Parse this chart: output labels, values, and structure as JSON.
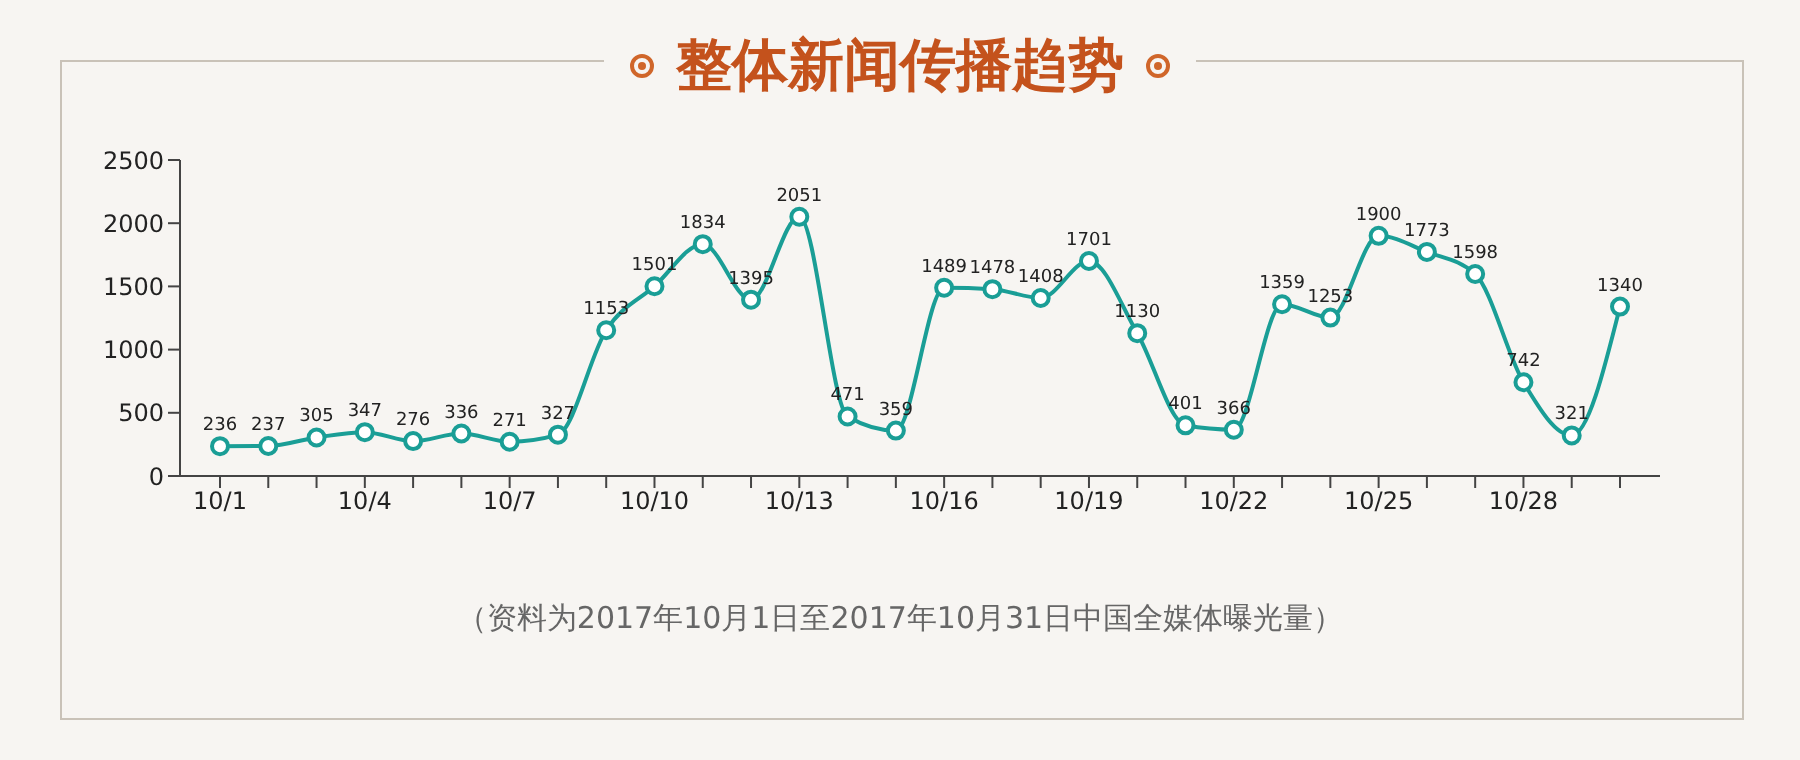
{
  "chart_data": {
    "type": "line",
    "title": "整体新闻传播趋势",
    "categories": [
      "10/1",
      null,
      null,
      "10/4",
      null,
      null,
      "10/7",
      null,
      null,
      "10/10",
      null,
      null,
      "10/13",
      null,
      null,
      "10/16",
      null,
      null,
      "10/19",
      null,
      null,
      "10/22",
      null,
      null,
      "10/25",
      null,
      null,
      "10/28",
      null,
      null
    ],
    "series": [
      {
        "color": "#1a9e96",
        "values": [
          236,
          237,
          305,
          347,
          276,
          336,
          271,
          327,
          1153,
          1501,
          1834,
          1395,
          2051,
          471,
          359,
          1489,
          1478,
          1408,
          1701,
          1130,
          401,
          366,
          1359,
          1253,
          1900,
          1773,
          1598,
          742,
          321,
          1340
        ]
      }
    ],
    "ylim": [
      0,
      2500
    ],
    "yticks": [
      0,
      500,
      1000,
      1500,
      2000,
      2500
    ],
    "grid": false,
    "legend": false,
    "marker": "circle",
    "line_style": "solid",
    "data_labels": true,
    "annotations": [
      "（资料为2017年10月1日至2017年10月31日中国全媒体曝光量）"
    ]
  }
}
